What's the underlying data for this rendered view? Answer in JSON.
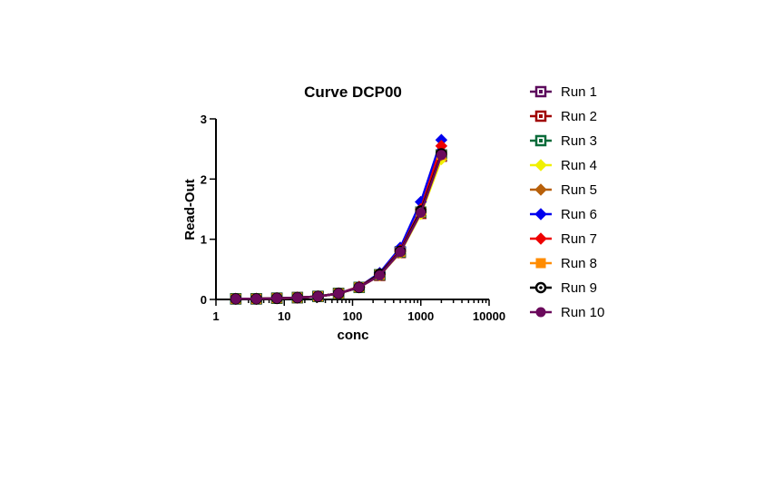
{
  "chart_data": {
    "type": "line",
    "title": "Curve DCP00",
    "xlabel": "conc",
    "ylabel": "Read-Out",
    "xscale": "log",
    "xlim": [
      1,
      10000
    ],
    "ylim": [
      0,
      3
    ],
    "xticks": [
      "1",
      "10",
      "100",
      "1000",
      "10000"
    ],
    "yticks": [
      "0",
      "1",
      "2",
      "3"
    ],
    "legend_position": "right",
    "x": [
      1.95,
      3.9,
      7.8,
      15.6,
      31.25,
      62.5,
      125,
      250,
      500,
      1000,
      2000
    ],
    "series": [
      {
        "name": "Run 1",
        "color": "#5c0a5c",
        "marker": "square-open",
        "values": [
          0.01,
          0.01,
          0.02,
          0.03,
          0.05,
          0.1,
          0.2,
          0.41,
          0.79,
          1.45,
          2.4
        ]
      },
      {
        "name": "Run 2",
        "color": "#a00000",
        "marker": "square-open",
        "values": [
          0.01,
          0.01,
          0.02,
          0.03,
          0.05,
          0.1,
          0.2,
          0.4,
          0.78,
          1.43,
          2.38
        ]
      },
      {
        "name": "Run 3",
        "color": "#0a6b3a",
        "marker": "square-open",
        "values": [
          0.01,
          0.01,
          0.02,
          0.03,
          0.05,
          0.1,
          0.2,
          0.41,
          0.79,
          1.45,
          2.4
        ]
      },
      {
        "name": "Run 4",
        "color": "#f0f000",
        "marker": "diamond",
        "values": [
          0.01,
          0.01,
          0.02,
          0.03,
          0.05,
          0.1,
          0.2,
          0.4,
          0.78,
          1.42,
          2.33
        ]
      },
      {
        "name": "Run 5",
        "color": "#b8600a",
        "marker": "diamond",
        "values": [
          0.01,
          0.01,
          0.02,
          0.03,
          0.05,
          0.1,
          0.2,
          0.41,
          0.79,
          1.45,
          2.4
        ]
      },
      {
        "name": "Run 6",
        "color": "#0000ee",
        "marker": "diamond",
        "values": [
          0.01,
          0.01,
          0.02,
          0.03,
          0.05,
          0.1,
          0.21,
          0.44,
          0.86,
          1.62,
          2.65
        ]
      },
      {
        "name": "Run 7",
        "color": "#ee0000",
        "marker": "diamond",
        "values": [
          0.01,
          0.01,
          0.02,
          0.03,
          0.05,
          0.1,
          0.21,
          0.42,
          0.82,
          1.5,
          2.55
        ]
      },
      {
        "name": "Run 8",
        "color": "#ff8c00",
        "marker": "square",
        "values": [
          0.01,
          0.01,
          0.02,
          0.03,
          0.05,
          0.1,
          0.2,
          0.41,
          0.79,
          1.45,
          2.4
        ]
      },
      {
        "name": "Run 9",
        "color": "#000000",
        "marker": "circle-open",
        "values": [
          0.01,
          0.01,
          0.02,
          0.03,
          0.05,
          0.1,
          0.2,
          0.42,
          0.8,
          1.47,
          2.42
        ]
      },
      {
        "name": "Run 10",
        "color": "#6b0a5c",
        "marker": "circle",
        "values": [
          0.01,
          0.01,
          0.02,
          0.03,
          0.05,
          0.1,
          0.2,
          0.4,
          0.79,
          1.44,
          2.4
        ]
      }
    ]
  }
}
